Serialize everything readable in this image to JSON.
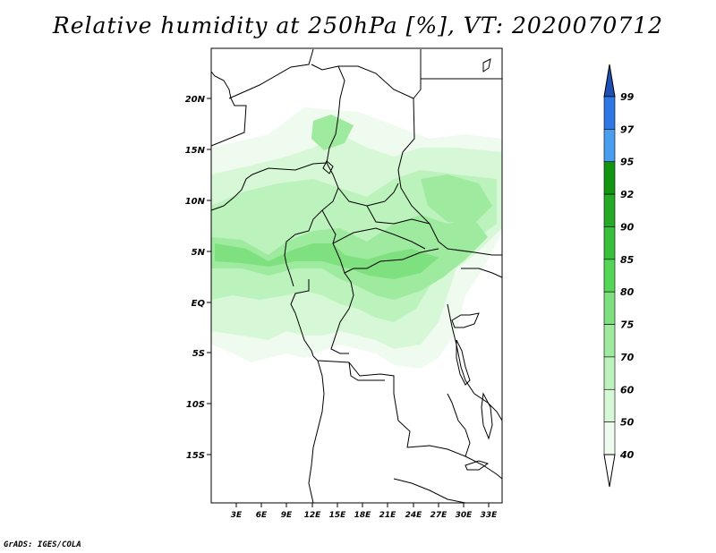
{
  "title": "Relative humidity at 250hPa [%], VT: 2020070712",
  "credit": "GrADS: IGES/COLA",
  "map": {
    "lat_labels": [
      "20N",
      "15N",
      "10N",
      "5N",
      "EQ",
      "5S",
      "10S",
      "15S"
    ],
    "lon_labels": [
      "3E",
      "6E",
      "9E",
      "12E",
      "15E",
      "18E",
      "21E",
      "24E",
      "27E",
      "30E",
      "33E"
    ]
  },
  "colorbar": {
    "levels": [
      "99",
      "97",
      "95",
      "92",
      "90",
      "85",
      "80",
      "75",
      "70",
      "60",
      "50",
      "40"
    ],
    "colors": [
      "#1e50c8",
      "#2e78e6",
      "#4a9ef0",
      "#129612",
      "#24aa24",
      "#38c038",
      "#56d656",
      "#7ee07e",
      "#9eea9e",
      "#bcf2bc",
      "#d6f8d6",
      "#eefbee"
    ],
    "top_arrow_color": "#1e4fb4",
    "bottom_arrow_color": "#ffffff"
  }
}
